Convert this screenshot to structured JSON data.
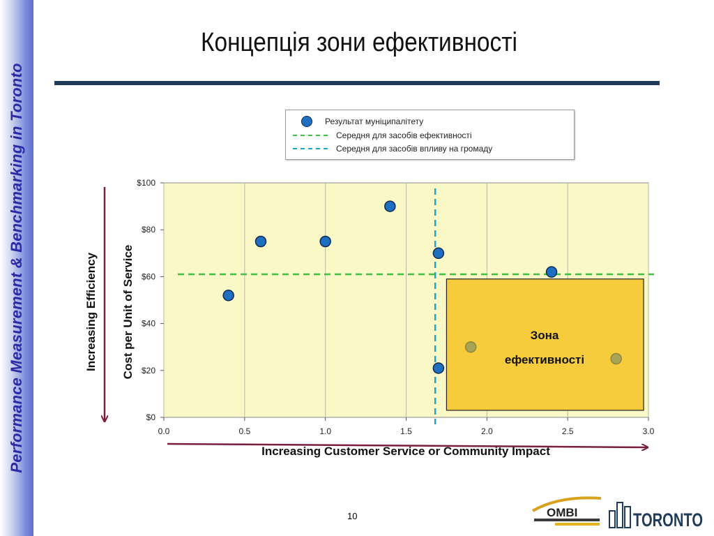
{
  "sidebar": {
    "text": "Performance Measurement & Benchmarking in Toronto"
  },
  "slide": {
    "title": "Концепція зони ефективності",
    "page_number": "10"
  },
  "legend": {
    "items": [
      {
        "label": "Результат муніципалітету",
        "symbol": "dot",
        "color": "#1f6fc0"
      },
      {
        "label": "Середня для засобів ефективності",
        "symbol": "dash",
        "color": "#3fbf3f"
      },
      {
        "label": "Середня для  засобів впливу на громаду",
        "symbol": "dash",
        "color": "#1aa6c8"
      }
    ]
  },
  "labels": {
    "efficiency_arrow": "Increasing Efficiency",
    "zone_line1": "Зона",
    "zone_line2": "ефективності"
  },
  "chart_data": {
    "type": "scatter",
    "xlabel": "Increasing Customer Service or Community Impact",
    "ylabel": "Cost per Unit of Service",
    "xlim": [
      0,
      3.0
    ],
    "ylim": [
      0,
      100
    ],
    "x_ticks": [
      "0.0",
      "0.5",
      "1.0",
      "1.5",
      "2.0",
      "2.5",
      "3.0"
    ],
    "y_ticks": [
      "$0",
      "$20",
      "$40",
      "$60",
      "$80",
      "$100"
    ],
    "grid": "vertical",
    "series": [
      {
        "name": "Результат муніципалітету",
        "points": [
          {
            "x": 0.4,
            "y": 52
          },
          {
            "x": 0.6,
            "y": 75
          },
          {
            "x": 1.0,
            "y": 75
          },
          {
            "x": 1.4,
            "y": 90
          },
          {
            "x": 1.7,
            "y": 70
          },
          {
            "x": 2.4,
            "y": 62
          },
          {
            "x": 1.7,
            "y": 21
          },
          {
            "x": 1.9,
            "y": 30
          },
          {
            "x": 2.8,
            "y": 25
          }
        ]
      }
    ],
    "reference_lines": [
      {
        "name": "Середня для засобів ефективності",
        "axis": "y",
        "value": 61,
        "color": "#3fbf3f"
      },
      {
        "name": "Середня для  засобів впливу на громаду",
        "axis": "x",
        "value": 1.68,
        "color": "#1aa6c8"
      }
    ],
    "zone": {
      "x_from": 1.75,
      "x_to": 2.97,
      "y_from": 3,
      "y_to": 59,
      "color": "#f6cc3c"
    },
    "colors": {
      "plot_bg": "#fbf8c8",
      "point": "#1f6fc0",
      "point_in_zone": "#a8a454",
      "arrow": "#7a1f3a"
    }
  },
  "logos": {
    "ombi": "OMBI",
    "toronto": "TORONTO"
  }
}
